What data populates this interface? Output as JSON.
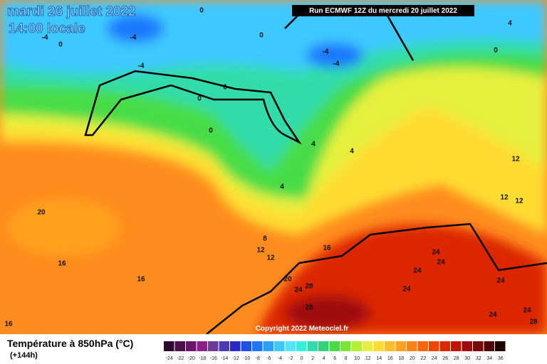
{
  "header": {
    "title": "mardi 26 juillet 2022",
    "time": "14:00 locale",
    "run": "Run ECMWF 12Z du mercredi 20 juillet 2022",
    "copyright": "Copyright 2022 Meteociel.fr"
  },
  "legend": {
    "title": "Température à 850hPa (°C)",
    "subtitle": "(+144h)",
    "ticks": [
      -24,
      -22,
      -20,
      -18,
      -16,
      -14,
      -12,
      -10,
      -8,
      -6,
      -4,
      -2,
      0,
      2,
      4,
      6,
      8,
      10,
      12,
      14,
      16,
      18,
      20,
      22,
      24,
      26,
      28,
      30,
      32,
      34,
      36
    ],
    "colors": [
      "#2d0a2d",
      "#4b0f4b",
      "#6a146a",
      "#8c1e8c",
      "#6e3c96",
      "#4b3cb4",
      "#2828c8",
      "#1e50e6",
      "#1e78ff",
      "#28a0ff",
      "#3cc8ff",
      "#50e6ff",
      "#32f0dc",
      "#32dcaa",
      "#32d278",
      "#46dc46",
      "#78e632",
      "#b4f032",
      "#e6f03c",
      "#ffdc32",
      "#ffbe28",
      "#ffa01e",
      "#ff8214",
      "#ff640a",
      "#f04600",
      "#dc2800",
      "#be1400",
      "#a00a0a",
      "#780a0a",
      "#500505",
      "#200202"
    ]
  },
  "contour_labels": [
    0,
    -4,
    -4,
    0,
    0,
    -4,
    -4,
    -4,
    0,
    4,
    0,
    0,
    0,
    4,
    4,
    4,
    12,
    12,
    12,
    20,
    8,
    12,
    12,
    16,
    16,
    16,
    20,
    24,
    28,
    24,
    24,
    24,
    24,
    28,
    24,
    24,
    24,
    28,
    16
  ]
}
